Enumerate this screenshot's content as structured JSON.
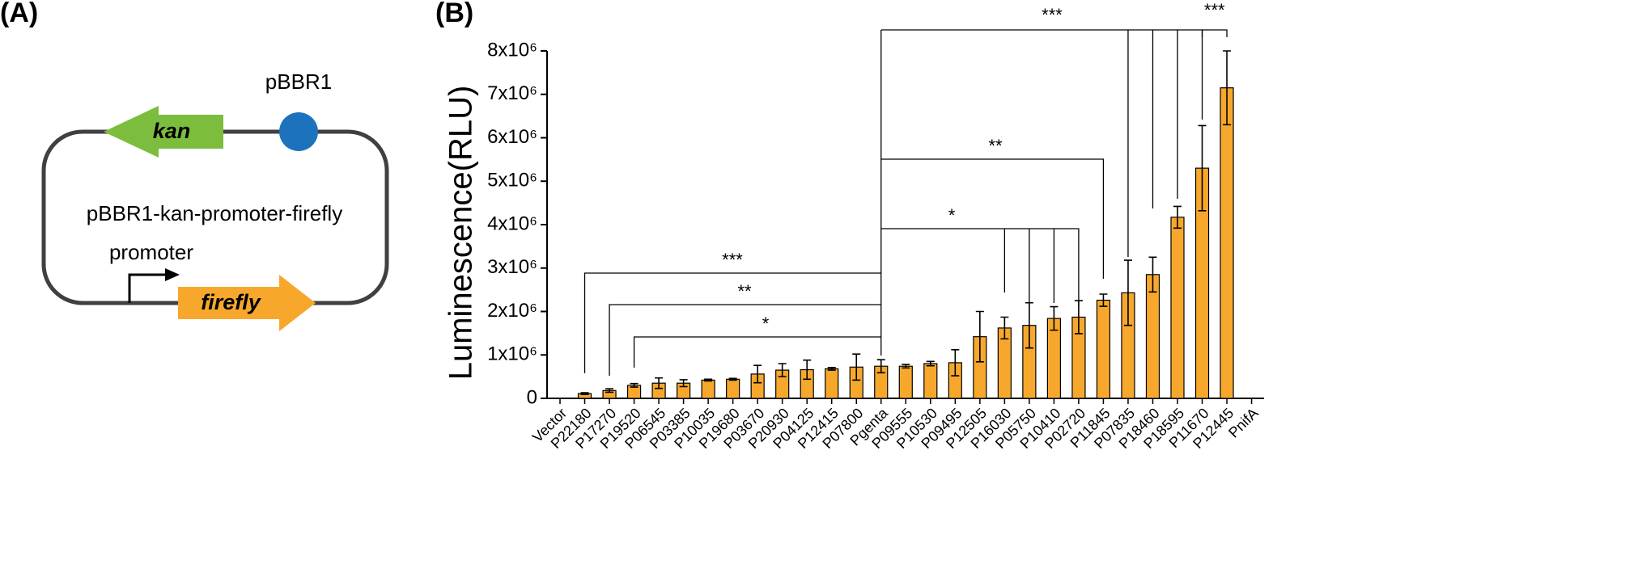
{
  "panel_a": {
    "label": "(A)",
    "gene_kan": "kan",
    "origin": "pBBR1",
    "plasmid": "pBBR1-kan-promoter-firefly",
    "promoter": "promoter",
    "gene_firefly": "firefly"
  },
  "panel_b": {
    "label": "(B)"
  },
  "chart_data": {
    "type": "bar",
    "y_label": "Luminescence(RLU)",
    "categories": [
      "Vector",
      "P22180",
      "P17270",
      "P19520",
      "P06545",
      "P03385",
      "P10035",
      "P19680",
      "P03670",
      "P20930",
      "P04125",
      "P12415",
      "P07800",
      "Pgenta",
      "P09555",
      "P10530",
      "P09495",
      "P12505",
      "P16030",
      "P05750",
      "P10410",
      "P02720",
      "P11845",
      "P07835",
      "P18460",
      "P18595",
      "P11670",
      "P12445",
      "PnifA"
    ],
    "values": [
      0,
      110000,
      180000,
      300000,
      350000,
      350000,
      420000,
      440000,
      560000,
      650000,
      660000,
      680000,
      720000,
      740000,
      740000,
      800000,
      820000,
      1420000,
      1620000,
      1680000,
      1840000,
      1870000,
      2260000,
      2430000,
      2850000,
      4170000,
      5300000,
      7150000,
      0
    ],
    "errors": [
      0,
      20000,
      40000,
      40000,
      120000,
      80000,
      20000,
      20000,
      200000,
      150000,
      220000,
      30000,
      300000,
      150000,
      40000,
      50000,
      300000,
      580000,
      250000,
      520000,
      270000,
      380000,
      140000,
      750000,
      400000,
      250000,
      980000,
      850000,
      0
    ],
    "color": "#f7a82c",
    "ylim": [
      0,
      8000000
    ],
    "yticks": [
      0,
      {
        "value": 1000000,
        "label": "1x10⁶"
      },
      {
        "value": 2000000,
        "label": "2x10⁶"
      },
      {
        "value": 3000000,
        "label": "3x10⁶"
      },
      {
        "value": 4000000,
        "label": "4x10⁶"
      },
      {
        "value": 5000000,
        "label": "5x10⁶"
      },
      {
        "value": 6000000,
        "label": "6x10⁶"
      },
      {
        "value": 7000000,
        "label": "7x10⁶"
      },
      {
        "value": 8000000,
        "label": "8x10⁶"
      }
    ],
    "annotations": [
      "***",
      "**",
      "*",
      "***",
      "**",
      "*",
      "***"
    ]
  }
}
